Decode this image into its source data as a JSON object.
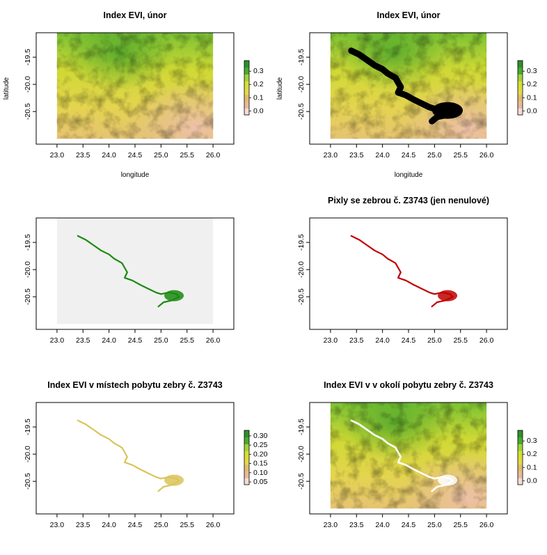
{
  "colors": {
    "evi_ramp": [
      "#f2dcd4",
      "#e9b998",
      "#e0bd6c",
      "#e2d84a",
      "#d4df33",
      "#9fd23a",
      "#4aaa2e",
      "#2f8f28"
    ],
    "zebra_green": "#1a8a10",
    "zebra_red": "#c00000",
    "track_black": "#000000",
    "gray_extent": "#f0f0f0"
  },
  "chart_data": [
    {
      "id": "p1",
      "type": "heatmap",
      "title": "Index EVI, únor",
      "xlabel": "longitude",
      "ylabel": "latitude",
      "xlim": [
        22.6,
        26.4
      ],
      "ylim": [
        -21.1,
        -19.05
      ],
      "xticks": [
        "23.0",
        "23.5",
        "24.0",
        "24.5",
        "25.0",
        "25.5",
        "26.0"
      ],
      "yticks": [
        "-19.5",
        "-20.0",
        "-20.5"
      ],
      "raster_extent": {
        "lon": [
          23.0,
          26.0
        ],
        "lat": [
          -21.0,
          -19.0
        ]
      },
      "fill": "evi",
      "legend": {
        "ticks": [
          "0.3",
          "0.2",
          "0.1",
          "0.0"
        ],
        "range": [
          -0.03,
          0.38
        ]
      }
    },
    {
      "id": "p2",
      "type": "heatmap",
      "title": "Index EVI, únor",
      "xlabel": "longitude",
      "ylabel": "latitude",
      "xlim": [
        22.6,
        26.4
      ],
      "ylim": [
        -21.1,
        -19.05
      ],
      "xticks": [
        "23.0",
        "23.5",
        "24.0",
        "24.5",
        "25.0",
        "25.5",
        "26.0"
      ],
      "yticks": [
        "-19.5",
        "-20.0",
        "-20.5"
      ],
      "raster_extent": {
        "lon": [
          23.0,
          26.0
        ],
        "lat": [
          -21.0,
          -19.0
        ]
      },
      "fill": "evi",
      "overlay": "track_thick",
      "legend": {
        "ticks": [
          "0.3",
          "0.2",
          "0.1",
          "0.0"
        ],
        "range": [
          -0.03,
          0.38
        ]
      }
    },
    {
      "id": "p3",
      "type": "heatmap",
      "title": "",
      "xlabel": "",
      "ylabel": "",
      "xlim": [
        22.6,
        26.4
      ],
      "ylim": [
        -21.1,
        -19.05
      ],
      "xticks": [
        "23.0",
        "23.5",
        "24.0",
        "24.5",
        "25.0",
        "25.5",
        "26.0"
      ],
      "yticks": [
        "-19.5",
        "-20.0",
        "-20.5"
      ],
      "raster_extent": {
        "lon": [
          23.0,
          26.0
        ],
        "lat": [
          -21.0,
          -19.0
        ]
      },
      "fill": "gray",
      "overlay": "track_green"
    },
    {
      "id": "p4",
      "type": "heatmap",
      "title": "Pixly se zebrou č. Z3743 (jen nenulové)",
      "xlabel": "",
      "ylabel": "",
      "xlim": [
        22.6,
        26.4
      ],
      "ylim": [
        -21.1,
        -19.05
      ],
      "xticks": [
        "23.0",
        "23.5",
        "24.0",
        "24.5",
        "25.0",
        "25.5",
        "26.0"
      ],
      "yticks": [
        "-19.5",
        "-20.0",
        "-20.5"
      ],
      "raster_extent": {
        "lon": [
          23.0,
          26.0
        ],
        "lat": [
          -21.0,
          -19.0
        ]
      },
      "fill": "none",
      "overlay": "track_red"
    },
    {
      "id": "p5",
      "type": "heatmap",
      "title": "Index EVI v místech pobytu zebry č. Z3743",
      "xlabel": "",
      "ylabel": "",
      "xlim": [
        22.6,
        26.4
      ],
      "ylim": [
        -21.1,
        -19.05
      ],
      "xticks": [
        "23.0",
        "23.5",
        "24.0",
        "24.5",
        "25.0",
        "25.5",
        "26.0"
      ],
      "yticks": [
        "-19.5",
        "-20.0",
        "-20.5"
      ],
      "raster_extent": {
        "lon": [
          23.0,
          26.0
        ],
        "lat": [
          -21.0,
          -19.0
        ]
      },
      "fill": "none",
      "overlay": "track_evi",
      "legend": {
        "ticks": [
          "0.30",
          "0.25",
          "0.20",
          "0.15",
          "0.10",
          "0.05"
        ],
        "range": [
          0.035,
          0.33
        ]
      }
    },
    {
      "id": "p6",
      "type": "heatmap",
      "title": "Index EVI v v okolí pobytu zebry č. Z3743",
      "xlabel": "",
      "ylabel": "",
      "xlim": [
        22.6,
        26.4
      ],
      "ylim": [
        -21.1,
        -19.05
      ],
      "xticks": [
        "23.0",
        "23.5",
        "24.0",
        "24.5",
        "25.0",
        "25.5",
        "26.0"
      ],
      "yticks": [
        "-19.5",
        "-20.0",
        "-20.5"
      ],
      "raster_extent": {
        "lon": [
          23.0,
          26.0
        ],
        "lat": [
          -21.0,
          -19.0
        ]
      },
      "fill": "evi",
      "overlay": "track_white",
      "legend": {
        "ticks": [
          "0.3",
          "0.2",
          "0.1",
          "0.0"
        ],
        "range": [
          -0.03,
          0.38
        ]
      }
    }
  ],
  "track": {
    "lon": [
      23.4,
      23.55,
      23.7,
      23.85,
      24.0,
      24.1,
      24.25,
      24.35,
      24.3,
      24.45,
      24.6,
      24.75,
      24.9,
      25.0,
      25.15,
      25.3,
      25.35,
      25.2,
      25.05,
      24.95
    ],
    "lat": [
      -19.38,
      -19.45,
      -19.55,
      -19.65,
      -19.72,
      -19.8,
      -19.88,
      -20.05,
      -20.15,
      -20.2,
      -20.28,
      -20.35,
      -20.42,
      -20.45,
      -20.42,
      -20.45,
      -20.5,
      -20.57,
      -20.6,
      -20.68
    ]
  }
}
